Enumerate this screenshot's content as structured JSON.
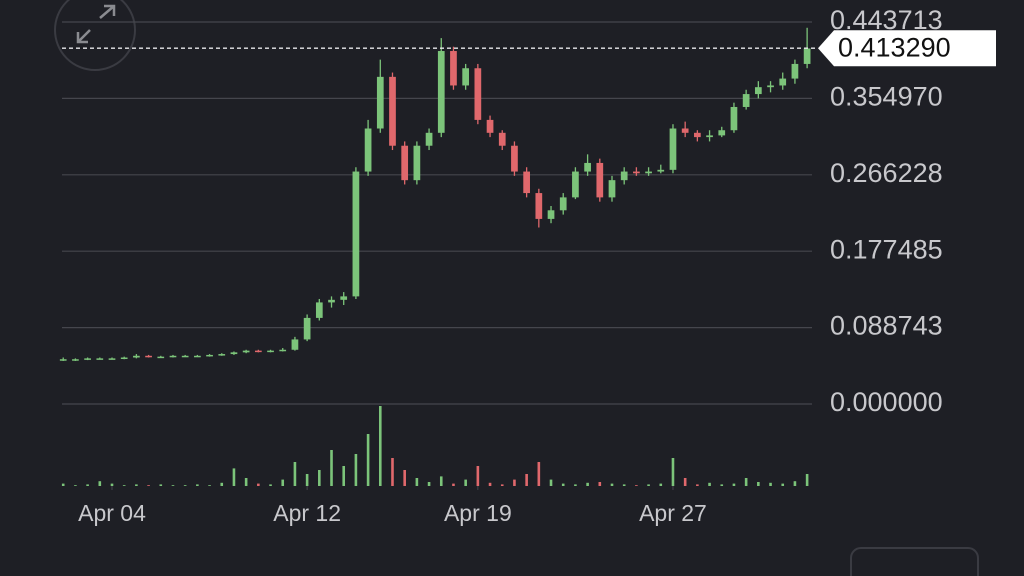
{
  "chart_data": {
    "type": "candlestick",
    "x": [
      2,
      2.5,
      3,
      3.5,
      4,
      4.5,
      5,
      5.5,
      6,
      6.5,
      7,
      7.5,
      8,
      8.5,
      9,
      9.5,
      10,
      10.5,
      11,
      11.5,
      12,
      12.5,
      13,
      13.5,
      14,
      14.5,
      15,
      15.5,
      16,
      16.5,
      17,
      17.5,
      18,
      18.5,
      19,
      19.5,
      20,
      20.5,
      21,
      21.5,
      22,
      22.5,
      23,
      23.5,
      24,
      24.5,
      25,
      25.5,
      26,
      26.5,
      27,
      27.5,
      28,
      28.5,
      29,
      29.5,
      30,
      30.5,
      31,
      31.5,
      32,
      32.5
    ],
    "open": [
      0.052,
      0.052,
      0.052,
      0.053,
      0.053,
      0.053,
      0.054,
      0.056,
      0.055,
      0.055,
      0.056,
      0.056,
      0.056,
      0.057,
      0.058,
      0.06,
      0.062,
      0.061,
      0.062,
      0.063,
      0.075,
      0.1,
      0.118,
      0.121,
      0.125,
      0.27,
      0.32,
      0.38,
      0.3,
      0.26,
      0.3,
      0.315,
      0.41,
      0.37,
      0.39,
      0.33,
      0.315,
      0.3,
      0.27,
      0.245,
      0.215,
      0.225,
      0.24,
      0.27,
      0.28,
      0.24,
      0.26,
      0.27,
      0.268,
      0.27,
      0.272,
      0.32,
      0.315,
      0.31,
      0.312,
      0.318,
      0.345,
      0.36,
      0.368,
      0.37,
      0.378,
      0.395
    ],
    "high": [
      0.054,
      0.053,
      0.054,
      0.054,
      0.054,
      0.055,
      0.058,
      0.057,
      0.056,
      0.057,
      0.057,
      0.057,
      0.058,
      0.059,
      0.061,
      0.063,
      0.063,
      0.063,
      0.065,
      0.078,
      0.104,
      0.122,
      0.125,
      0.13,
      0.275,
      0.33,
      0.4,
      0.385,
      0.305,
      0.305,
      0.32,
      0.425,
      0.415,
      0.395,
      0.395,
      0.335,
      0.318,
      0.305,
      0.275,
      0.25,
      0.23,
      0.245,
      0.275,
      0.29,
      0.285,
      0.265,
      0.275,
      0.275,
      0.275,
      0.278,
      0.325,
      0.328,
      0.318,
      0.318,
      0.322,
      0.35,
      0.365,
      0.375,
      0.375,
      0.385,
      0.4,
      0.437
    ],
    "low": [
      0.05,
      0.05,
      0.051,
      0.052,
      0.052,
      0.052,
      0.053,
      0.054,
      0.054,
      0.054,
      0.055,
      0.055,
      0.055,
      0.056,
      0.057,
      0.059,
      0.06,
      0.06,
      0.061,
      0.062,
      0.073,
      0.097,
      0.112,
      0.115,
      0.122,
      0.265,
      0.315,
      0.295,
      0.255,
      0.255,
      0.295,
      0.31,
      0.365,
      0.365,
      0.325,
      0.31,
      0.295,
      0.265,
      0.24,
      0.205,
      0.21,
      0.22,
      0.238,
      0.265,
      0.235,
      0.235,
      0.255,
      0.265,
      0.265,
      0.268,
      0.268,
      0.31,
      0.305,
      0.305,
      0.31,
      0.315,
      0.342,
      0.355,
      0.362,
      0.365,
      0.372,
      0.39
    ],
    "close": [
      0.052,
      0.052,
      0.053,
      0.053,
      0.053,
      0.054,
      0.056,
      0.055,
      0.055,
      0.056,
      0.056,
      0.056,
      0.057,
      0.058,
      0.06,
      0.062,
      0.061,
      0.062,
      0.063,
      0.075,
      0.1,
      0.118,
      0.121,
      0.125,
      0.27,
      0.32,
      0.38,
      0.3,
      0.26,
      0.3,
      0.315,
      0.41,
      0.37,
      0.39,
      0.33,
      0.315,
      0.3,
      0.27,
      0.245,
      0.215,
      0.225,
      0.24,
      0.27,
      0.28,
      0.24,
      0.26,
      0.27,
      0.268,
      0.27,
      0.272,
      0.32,
      0.315,
      0.31,
      0.312,
      0.318,
      0.345,
      0.36,
      0.368,
      0.37,
      0.378,
      0.395,
      0.413
    ],
    "volume": [
      3,
      1,
      2,
      6,
      3,
      1,
      2,
      1,
      2,
      1,
      1,
      2,
      1,
      4,
      22,
      10,
      3,
      2,
      8,
      30,
      15,
      20,
      45,
      25,
      40,
      65,
      100,
      35,
      20,
      10,
      5,
      12,
      3,
      8,
      25,
      4,
      2,
      8,
      15,
      30,
      8,
      3,
      2,
      4,
      5,
      3,
      2,
      1,
      2,
      3,
      35,
      10,
      2,
      4,
      2,
      3,
      10,
      5,
      4,
      3,
      6,
      15
    ],
    "up_color": "#7cc47a",
    "down_color": "#e0686c",
    "xlim": [
      1.95,
      32.7
    ],
    "ylim": [
      0,
      0.443713
    ],
    "xticks": [
      {
        "value": 4,
        "label": "Apr 04"
      },
      {
        "value": 12,
        "label": "Apr 12"
      },
      {
        "value": 19,
        "label": "Apr 19"
      },
      {
        "value": 27,
        "label": "Apr 27"
      }
    ],
    "yticks": [
      {
        "value": 0,
        "label": "0.000000"
      },
      0.088743,
      0.177485,
      0.266228,
      {
        "value": 0.35497,
        "label": "0.354970"
      },
      0.443713
    ],
    "last_price": {
      "value": 0.41329,
      "label": "0.413290"
    },
    "grid": true
  }
}
